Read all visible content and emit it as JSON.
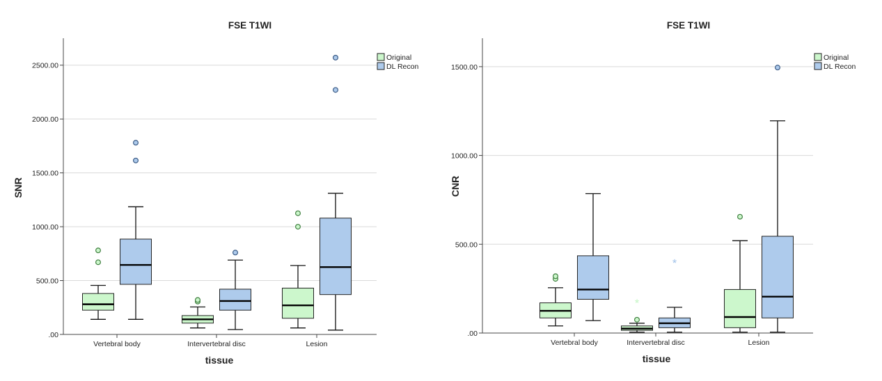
{
  "chart_data": [
    {
      "type": "boxplot",
      "title": "FSE T1WI",
      "xlabel": "tissue",
      "ylabel": "SNR",
      "ylim": [
        0,
        2750
      ],
      "yticks": [
        0,
        500,
        1000,
        1500,
        2000,
        2500
      ],
      "ytick_labels": [
        ".00",
        "500.00",
        "1000.00",
        "1500.00",
        "2000.00",
        "2500.00"
      ],
      "categories": [
        "Vertebral body",
        "Intervertebral disc",
        "Lesion"
      ],
      "grid": true,
      "legend": "top-right",
      "series": [
        {
          "name": "Original",
          "color": "#ccf7cc",
          "outlier_color": "#3e7d3e",
          "boxes": [
            {
              "min": 140,
              "q1": 225,
              "median": 280,
              "q3": 380,
              "max": 455,
              "outliers": [
                670,
                780
              ],
              "extremes": []
            },
            {
              "min": 60,
              "q1": 105,
              "median": 140,
              "q3": 175,
              "max": 255,
              "outliers": [
                305,
                320
              ],
              "extremes": []
            },
            {
              "min": 60,
              "q1": 150,
              "median": 270,
              "q3": 430,
              "max": 640,
              "outliers": [
                1000,
                1125
              ],
              "extremes": []
            }
          ]
        },
        {
          "name": "DL Recon",
          "color": "#aecbec",
          "outlier_color": "#3a5a85",
          "boxes": [
            {
              "min": 140,
              "q1": 465,
              "median": 645,
              "q3": 885,
              "max": 1185,
              "outliers": [
                1615,
                1780
              ],
              "extremes": []
            },
            {
              "min": 45,
              "q1": 225,
              "median": 310,
              "q3": 420,
              "max": 690,
              "outliers": [
                760
              ],
              "extremes": []
            },
            {
              "min": 40,
              "q1": 370,
              "median": 625,
              "q3": 1080,
              "max": 1310,
              "outliers": [
                2270,
                2570
              ],
              "extremes": []
            }
          ]
        }
      ]
    },
    {
      "type": "boxplot",
      "title": "FSE T1WI",
      "xlabel": "tissue",
      "ylabel": "CNR",
      "ylim": [
        0,
        1660
      ],
      "yticks": [
        0,
        500,
        1000,
        1500
      ],
      "ytick_labels": [
        ".00",
        "500.00",
        "1000.00",
        "1500.00"
      ],
      "categories": [
        "Vertebral body",
        "Intervertebral disc",
        "Lesion"
      ],
      "grid": true,
      "legend": "top-right",
      "series": [
        {
          "name": "Original",
          "color": "#ccf7cc",
          "outlier_color": "#3e7d3e",
          "boxes": [
            {
              "min": 40,
              "q1": 85,
              "median": 125,
              "q3": 170,
              "max": 255,
              "outliers": [
                305,
                320
              ],
              "extremes": []
            },
            {
              "min": 5,
              "q1": 15,
              "median": 25,
              "q3": 40,
              "max": 55,
              "outliers": [
                75
              ],
              "extremes": [
                170
              ]
            },
            {
              "min": 5,
              "q1": 30,
              "median": 90,
              "q3": 245,
              "max": 520,
              "outliers": [
                655
              ],
              "extremes": []
            }
          ]
        },
        {
          "name": "DL Recon",
          "color": "#aecbec",
          "outlier_color": "#3a5a85",
          "boxes": [
            {
              "min": 70,
              "q1": 190,
              "median": 245,
              "q3": 435,
              "max": 785,
              "outliers": [],
              "extremes": []
            },
            {
              "min": 5,
              "q1": 30,
              "median": 55,
              "q3": 85,
              "max": 145,
              "outliers": [],
              "extremes": [
                395
              ]
            },
            {
              "min": 5,
              "q1": 85,
              "median": 205,
              "q3": 545,
              "max": 1195,
              "outliers": [
                1495
              ],
              "extremes": []
            }
          ]
        }
      ]
    }
  ]
}
